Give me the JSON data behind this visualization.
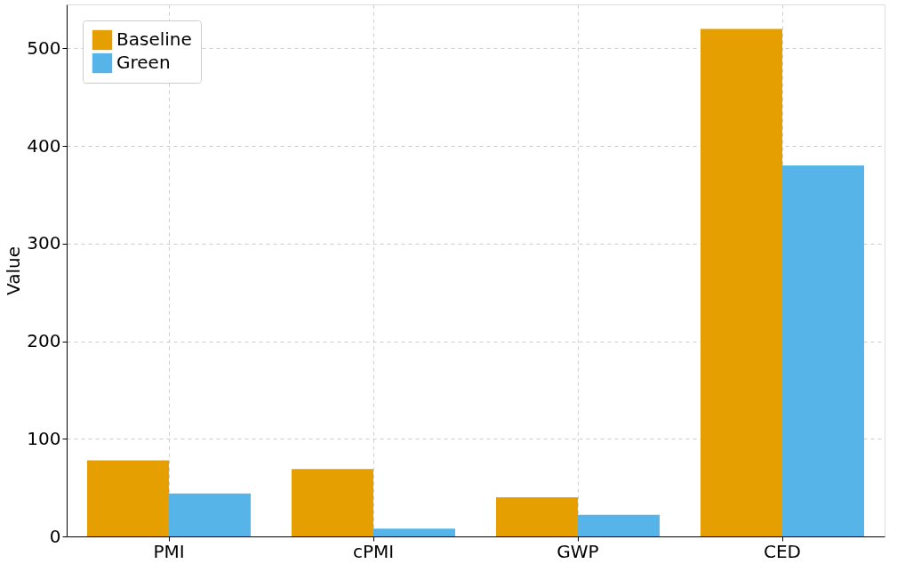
{
  "chart_data": {
    "type": "bar",
    "ylabel": "Value",
    "categories": [
      "PMI",
      "cPMI",
      "GWP",
      "CED"
    ],
    "series": [
      {
        "name": "Baseline",
        "color": "#e69f00",
        "values": [
          78,
          69,
          40,
          520
        ]
      },
      {
        "name": "Green",
        "color": "#56b4e9",
        "values": [
          44,
          8,
          22,
          380
        ]
      }
    ],
    "ylim": [
      0,
      545
    ],
    "yticks": [
      0,
      100,
      200,
      300,
      400,
      500
    ],
    "grid": true,
    "legend": "top left"
  }
}
